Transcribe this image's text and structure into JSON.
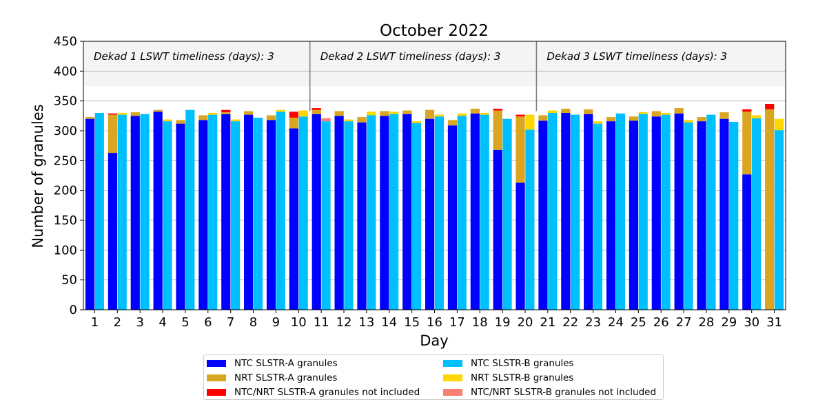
{
  "chart_data": {
    "type": "bar",
    "title": "October 2022",
    "xlabel": "Day",
    "ylabel": "Number of granules",
    "ylim": [
      0,
      450
    ],
    "yticks": [
      0,
      50,
      100,
      150,
      200,
      250,
      300,
      350,
      400,
      450
    ],
    "categories": [
      "1",
      "2",
      "3",
      "4",
      "5",
      "6",
      "7",
      "8",
      "9",
      "10",
      "11",
      "12",
      "13",
      "14",
      "15",
      "16",
      "17",
      "18",
      "19",
      "20",
      "21",
      "22",
      "23",
      "24",
      "25",
      "26",
      "27",
      "28",
      "29",
      "30",
      "31"
    ],
    "grid": true,
    "legend_position": "bottom",
    "dekads": [
      {
        "label": "Dekad 1 LSWT timeliness (days): 3",
        "start_day": 1,
        "end_day": 10
      },
      {
        "label": "Dekad 2 LSWT timeliness (days): 3",
        "start_day": 11,
        "end_day": 20
      },
      {
        "label": "Dekad 3 LSWT timeliness (days): 3",
        "start_day": 21,
        "end_day": 31
      }
    ],
    "series": [
      {
        "name": "NTC SLSTR-A granules",
        "color": "#0000ff",
        "stack": "A",
        "values": [
          320,
          263,
          325,
          332,
          312,
          318,
          328,
          327,
          318,
          304,
          328,
          325,
          314,
          325,
          328,
          320,
          309,
          329,
          268,
          213,
          317,
          330,
          328,
          316,
          317,
          324,
          329,
          316,
          320,
          227,
          0
        ]
      },
      {
        "name": "NRT SLSTR-A granules",
        "color": "#daa520",
        "stack": "A",
        "values": [
          3,
          64,
          6,
          3,
          6,
          8,
          3,
          6,
          8,
          18,
          7,
          8,
          9,
          8,
          6,
          15,
          9,
          8,
          66,
          111,
          9,
          7,
          8,
          7,
          7,
          9,
          9,
          7,
          11,
          105,
          336
        ]
      },
      {
        "name": "NTC/NRT SLSTR-A granules not included",
        "color": "#ff0000",
        "stack": "A",
        "values": [
          0,
          2,
          0,
          0,
          0,
          0,
          4,
          0,
          0,
          10,
          3,
          0,
          0,
          0,
          0,
          0,
          0,
          0,
          3,
          3,
          0,
          0,
          0,
          0,
          0,
          0,
          0,
          0,
          0,
          4,
          9
        ]
      },
      {
        "name": "NTC SLSTR-B granules",
        "color": "#00bfff",
        "stack": "B",
        "values": [
          330,
          327,
          328,
          316,
          335,
          327,
          316,
          322,
          332,
          324,
          316,
          316,
          326,
          328,
          313,
          324,
          325,
          327,
          320,
          302,
          330,
          327,
          312,
          329,
          328,
          327,
          314,
          327,
          315,
          321,
          301
        ]
      },
      {
        "name": "NRT SLSTR-B granules",
        "color": "#ffd700",
        "stack": "B",
        "values": [
          0,
          3,
          0,
          3,
          0,
          3,
          3,
          0,
          3,
          10,
          0,
          3,
          6,
          4,
          3,
          3,
          4,
          3,
          0,
          25,
          4,
          0,
          4,
          0,
          3,
          3,
          4,
          0,
          0,
          5,
          19
        ]
      },
      {
        "name": "NTC/NRT SLSTR-B granules not included",
        "color": "#fa8072",
        "stack": "B",
        "values": [
          0,
          0,
          0,
          0,
          0,
          0,
          0,
          0,
          0,
          0,
          5,
          0,
          0,
          0,
          0,
          0,
          0,
          0,
          0,
          0,
          0,
          0,
          0,
          0,
          0,
          0,
          0,
          0,
          0,
          0,
          0
        ]
      }
    ]
  },
  "legend": {
    "items": [
      {
        "label": "NTC SLSTR-A granules",
        "color": "#0000ff"
      },
      {
        "label": "NRT SLSTR-A granules",
        "color": "#daa520"
      },
      {
        "label": "NTC/NRT SLSTR-A granules not included",
        "color": "#ff0000"
      },
      {
        "label": "NTC SLSTR-B granules",
        "color": "#00bfff"
      },
      {
        "label": "NRT SLSTR-B granules",
        "color": "#ffd700"
      },
      {
        "label": "NTC/NRT SLSTR-B granules not included",
        "color": "#fa8072"
      }
    ]
  }
}
